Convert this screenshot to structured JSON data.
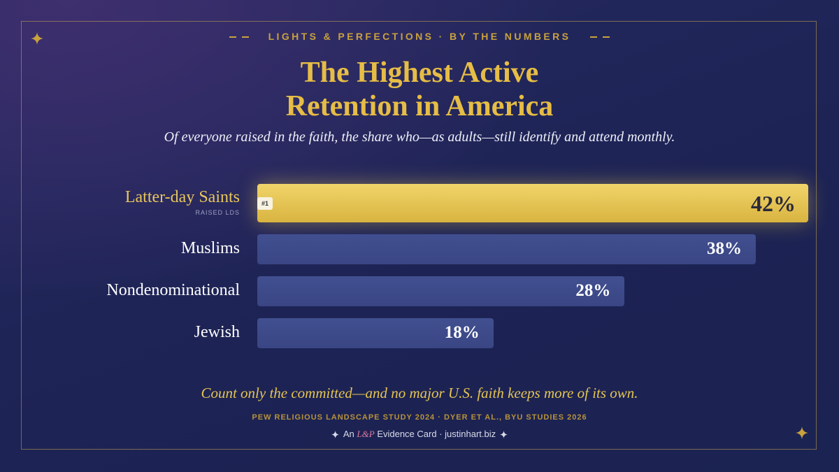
{
  "chart_data": {
    "type": "bar",
    "orientation": "horizontal",
    "kicker": "LIGHTS & PERFECTIONS · BY THE NUMBERS",
    "title": "The Highest Active Retention in America",
    "subtitle": "Of everyone raised in the faith, the share who—as adults—still identify and attend monthly.",
    "categories": [
      "Latter-day Saints",
      "Muslims",
      "Nondenominational",
      "Jewish"
    ],
    "category_notes": [
      "RAISED LDS",
      null,
      null,
      null
    ],
    "badges": [
      "#1",
      null,
      null,
      null
    ],
    "values": [
      42,
      38,
      28,
      18
    ],
    "value_labels": [
      "42%",
      "38%",
      "28%",
      "18%"
    ],
    "colors": [
      "#e6c452",
      "#414f90",
      "#414f90",
      "#414f90"
    ],
    "label_colors": [
      "#e8c65a",
      "#ffffff",
      "#ffffff",
      "#ffffff"
    ],
    "annotation": "Count only the committed—and no major U.S. faith keeps more of its own.",
    "source": "PEW RELIGIOUS LANDSCAPE STUDY 2024 · DYER ET AL., BYU STUDIES 2026",
    "footer": {
      "prefix": "An",
      "brand": "L&P",
      "suffix": "Evidence Card · justinhart.biz"
    }
  }
}
